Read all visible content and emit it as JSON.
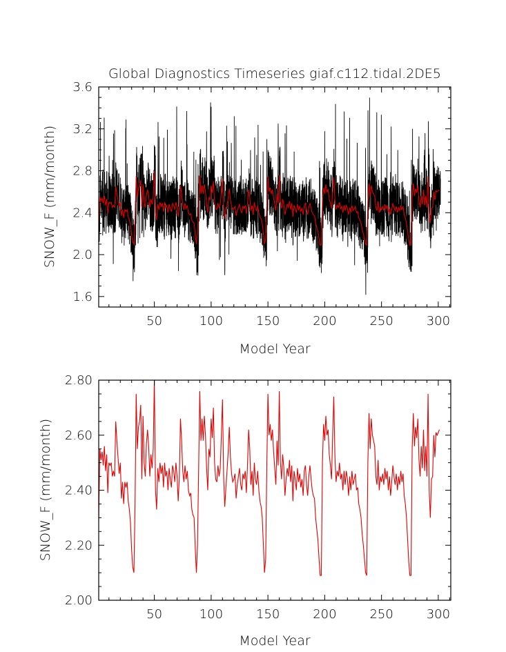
{
  "chart_data": [
    {
      "type": "line",
      "title": "Global Diagnostics Timeseries giaf.c112.tidal.2DE5",
      "xlabel": "Model Year",
      "ylabel": "SNOW_F (mm/month)",
      "xlim": [
        1,
        311
      ],
      "ylim": [
        1.5,
        3.6
      ],
      "x_ticks": [
        50,
        100,
        150,
        200,
        250,
        300
      ],
      "x_tick_labels": [
        "50",
        "100",
        "150",
        "200",
        "250",
        "300"
      ],
      "y_ticks": [
        1.6,
        2.0,
        2.4,
        2.8,
        3.2,
        3.6
      ],
      "y_tick_labels": [
        "1.6",
        "2.0",
        "2.4",
        "2.8",
        "3.2",
        "3.6"
      ],
      "cycle_years": 62,
      "series": [
        {
          "key": "monthly",
          "color": "#000000",
          "resolution": "monthly",
          "points_per_year": 12,
          "anomaly_range": [
            -0.55,
            0.95
          ],
          "annual_mean_ref": "annual"
        },
        {
          "key": "annual",
          "color": "#e00000",
          "resolution": "annual",
          "ref": "annual"
        }
      ]
    },
    {
      "type": "line",
      "title": "",
      "xlabel": "Model Year",
      "ylabel": "SNOW_F (mm/month)",
      "xlim": [
        1,
        311
      ],
      "ylim": [
        2.0,
        2.8
      ],
      "x_ticks": [
        50,
        100,
        150,
        200,
        250,
        300
      ],
      "x_tick_labels": [
        "50",
        "100",
        "150",
        "200",
        "250",
        "300"
      ],
      "y_ticks": [
        2.0,
        2.2,
        2.4,
        2.6,
        2.8
      ],
      "y_tick_labels": [
        "2.00",
        "2.20",
        "2.40",
        "2.60",
        "2.80"
      ],
      "series": [
        {
          "key": "annual",
          "color": "#e00000",
          "resolution": "annual",
          "ref": "annual"
        }
      ]
    }
  ],
  "annual": {
    "x_start": 1,
    "x_step": 1,
    "values": [
      2.29,
      2.55,
      2.51,
      2.54,
      2.49,
      2.56,
      2.47,
      2.53,
      2.39,
      2.5,
      2.49,
      2.5,
      2.45,
      2.47,
      2.45,
      2.65,
      2.58,
      2.52,
      2.46,
      2.5,
      2.37,
      2.43,
      2.35,
      2.43,
      2.41,
      2.43,
      2.36,
      2.33,
      2.28,
      2.18,
      2.12,
      2.1,
      2.35,
      2.75,
      2.55,
      2.63,
      2.65,
      2.71,
      2.44,
      2.67,
      2.5,
      2.45,
      2.57,
      2.62,
      2.56,
      2.45,
      2.53,
      2.48,
      2.55,
      2.8,
      2.4,
      2.33,
      2.48,
      2.43,
      2.5,
      2.46,
      2.49,
      2.41,
      2.5,
      2.45,
      2.47,
      2.4,
      2.48,
      2.44,
      2.41,
      2.49,
      2.47,
      2.43,
      2.5,
      2.45,
      2.36,
      2.45,
      2.66,
      2.58,
      2.47,
      2.43,
      2.49,
      2.44,
      2.47,
      2.4,
      2.38,
      2.39,
      2.33,
      2.31,
      2.3,
      2.19,
      2.1,
      2.2,
      2.48,
      2.76,
      2.58,
      2.66,
      2.58,
      2.67,
      2.6,
      2.48,
      2.4,
      2.55,
      2.52,
      2.66,
      2.59,
      2.7,
      2.5,
      2.44,
      2.43,
      2.49,
      2.45,
      2.48,
      2.6,
      2.73,
      2.45,
      2.34,
      2.41,
      2.47,
      2.54,
      2.63,
      2.52,
      2.46,
      2.43,
      2.44,
      2.46,
      2.37,
      2.42,
      2.45,
      2.48,
      2.42,
      2.4,
      2.46,
      2.44,
      2.47,
      2.39,
      2.49,
      2.62,
      2.55,
      2.42,
      2.47,
      2.38,
      2.5,
      2.44,
      2.42,
      2.47,
      2.4,
      2.36,
      2.34,
      2.3,
      2.2,
      2.1,
      2.15,
      2.48,
      2.75,
      2.6,
      2.64,
      2.58,
      2.62,
      2.54,
      2.48,
      2.42,
      2.58,
      2.49,
      2.76,
      2.5,
      2.44,
      2.53,
      2.48,
      2.38,
      2.44,
      2.48,
      2.45,
      2.51,
      2.43,
      2.49,
      2.36,
      2.47,
      2.44,
      2.4,
      2.48,
      2.43,
      2.46,
      2.41,
      2.44,
      2.38,
      2.47,
      2.49,
      2.42,
      2.38,
      2.45,
      2.49,
      2.44,
      2.4,
      2.38,
      2.37,
      2.3,
      2.26,
      2.22,
      2.15,
      2.09,
      2.09,
      2.5,
      2.64,
      2.58,
      2.67,
      2.6,
      2.62,
      2.53,
      2.49,
      2.44,
      2.6,
      2.74,
      2.52,
      2.43,
      2.47,
      2.45,
      2.5,
      2.44,
      2.46,
      2.4,
      2.47,
      2.42,
      2.47,
      2.44,
      2.38,
      2.45,
      2.4,
      2.47,
      2.42,
      2.44,
      2.46,
      2.4,
      2.41,
      2.35,
      2.33,
      2.3,
      2.24,
      2.2,
      2.15,
      2.1,
      2.09,
      2.5,
      2.68,
      2.55,
      2.66,
      2.6,
      2.58,
      2.56,
      2.45,
      2.42,
      2.51,
      2.4,
      2.45,
      2.43,
      2.46,
      2.42,
      2.48,
      2.44,
      2.47,
      2.4,
      2.45,
      2.38,
      2.43,
      2.49,
      2.45,
      2.42,
      2.46,
      2.4,
      2.45,
      2.42,
      2.47,
      2.43,
      2.46,
      2.38,
      2.35,
      2.3,
      2.22,
      2.14,
      2.09,
      2.09,
      2.55,
      2.68,
      2.56,
      2.63,
      2.59,
      2.66,
      2.51,
      2.45,
      2.56,
      2.48,
      2.62,
      2.47,
      2.56,
      2.45,
      2.75,
      2.4,
      2.3,
      2.44,
      2.45,
      2.6,
      2.52,
      2.61,
      2.6,
      2.61,
      2.62
    ]
  }
}
